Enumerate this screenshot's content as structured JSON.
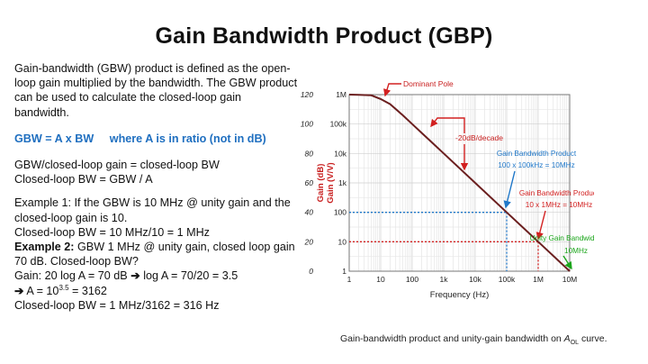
{
  "title": "Gain Bandwidth Product (GBP)",
  "text": {
    "intro": "Gain-bandwidth (GBW) product is defined as the open-loop gain multiplied by the bandwidth. The GBW product can be used to calculate the closed-loop gain bandwidth.",
    "formula": "GBW = A x BW     where A is in ratio (not in dB)",
    "rule1": "GBW/closed-loop gain = closed-loop BW",
    "rule2": "Closed-loop  BW = GBW / A",
    "ex1_line1": "Example 1:  If the GBW is 10 MHz @ unity gain and the closed-loop gain is 10.",
    "ex1_line2": "Closed-loop BW  = 10 MHz/10 = 1 MHz",
    "ex2_label": "Example 2:",
    "ex2_text": " GBW 1 MHz @ unity gain, closed loop gain 70 dB. Closed-loop BW?",
    "ex2_gain": "Gain: 20 log A = 70 dB ",
    "ex2_arrow1": "➔",
    "ex2_log": " log A = 70/20 = 3.5",
    "ex2_arrow2": "➔",
    "ex2_a_prefix": " A = 10",
    "ex2_a_exp": "3.5",
    "ex2_a_suffix": " = 3162",
    "ex2_bw": "Closed-loop BW = 1 MHz/3162 = 316 Hz"
  },
  "caption": {
    "prefix": "Gain-bandwidth product and unity-gain bandwidth on ",
    "a": "A",
    "sub": "OL",
    "suffix": " curve."
  },
  "chart_data": {
    "type": "line",
    "xscale": "log",
    "x_ticks": [
      "1",
      "10",
      "100",
      "1k",
      "10k",
      "100k",
      "1M",
      "10M"
    ],
    "y_left_ticks": [
      "0",
      "20",
      "40",
      "60",
      "80",
      "100",
      "120"
    ],
    "y_right_ticks": [
      "1",
      "10",
      "100",
      "1k",
      "10k",
      "100k",
      "1M"
    ],
    "xlabel": "Frequency (Hz)",
    "ylabel_left": "Gain (dB)",
    "ylabel_right": "Gain (V/V)",
    "xlim": [
      1,
      10000000
    ],
    "ylim": [
      0,
      120
    ],
    "grid": true,
    "series": [
      {
        "x": [
          1,
          2,
          5,
          10,
          20,
          50,
          100,
          200,
          500,
          1000,
          10000,
          100000,
          1000000,
          10000000
        ],
        "y": [
          120,
          119.9,
          119.5,
          117,
          113.5,
          106,
          100,
          94,
          86,
          80,
          60,
          40,
          20,
          0
        ]
      }
    ],
    "annotations": [
      {
        "text": "Dominant Pole",
        "color": "#c81e1e"
      },
      {
        "text": "-20dB/decade",
        "color": "#c81e1e"
      },
      {
        "text": "Gain Bandwidth Product",
        "text2": "100 x 100kHz = 10MHz",
        "color": "#1f77c8",
        "x": 100000,
        "y": 40
      },
      {
        "text": "Gain Bandwidth Product",
        "text2": "10 x 1MHz = 10MHz",
        "color": "#d22020",
        "x": 1000000,
        "y": 20
      },
      {
        "text": "Unity Gain Bandwidth",
        "text2": "10MHz",
        "color": "#1aa51a",
        "x": 10000000,
        "y": 0
      }
    ]
  },
  "colors": {
    "curve": "#6b1f1f",
    "blue": "#1f77c8",
    "red": "#d22020",
    "green": "#1aa51a",
    "formula": "#1f6fc0"
  }
}
